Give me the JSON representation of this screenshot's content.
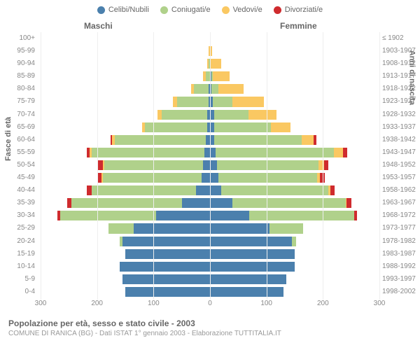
{
  "legend": [
    {
      "label": "Celibi/Nubili",
      "color": "#4b80ad"
    },
    {
      "label": "Coniugati/e",
      "color": "#b0d18b"
    },
    {
      "label": "Vedovi/e",
      "color": "#fac862"
    },
    {
      "label": "Divorziati/e",
      "color": "#cf2b2e"
    }
  ],
  "headers": {
    "male": "Maschi",
    "female": "Femmine"
  },
  "axis": {
    "left_title": "Fasce di età",
    "right_title": "Anni di nascita"
  },
  "xlim": 300,
  "xticks": [
    300,
    200,
    100,
    0,
    100,
    200,
    300
  ],
  "footer": {
    "title": "Popolazione per età, sesso e stato civile - 2003",
    "sub": "COMUNE DI RANICA (BG) - Dati ISTAT 1° gennaio 2003 - Elaborazione TUTTITALIA.IT"
  },
  "colors": {
    "celibi": "#4b80ad",
    "coniugati": "#b0d18b",
    "vedovi": "#fac862",
    "divorziati": "#cf2b2e"
  },
  "rows": [
    {
      "age": "100+",
      "birth": "≤ 1902",
      "m": [
        0,
        0,
        0,
        0
      ],
      "f": [
        0,
        0,
        0,
        0
      ]
    },
    {
      "age": "95-99",
      "birth": "1903-1907",
      "m": [
        0,
        0,
        3,
        0
      ],
      "f": [
        0,
        0,
        4,
        0
      ]
    },
    {
      "age": "90-94",
      "birth": "1908-1912",
      "m": [
        0,
        2,
        3,
        0
      ],
      "f": [
        0,
        0,
        20,
        0
      ]
    },
    {
      "age": "85-89",
      "birth": "1913-1917",
      "m": [
        0,
        8,
        5,
        0
      ],
      "f": [
        2,
        3,
        30,
        0
      ]
    },
    {
      "age": "80-84",
      "birth": "1918-1922",
      "m": [
        3,
        25,
        5,
        0
      ],
      "f": [
        3,
        12,
        45,
        0
      ]
    },
    {
      "age": "75-79",
      "birth": "1923-1927",
      "m": [
        3,
        55,
        8,
        0
      ],
      "f": [
        5,
        35,
        55,
        0
      ]
    },
    {
      "age": "70-74",
      "birth": "1928-1932",
      "m": [
        5,
        80,
        8,
        0
      ],
      "f": [
        8,
        60,
        50,
        0
      ]
    },
    {
      "age": "65-69",
      "birth": "1933-1937",
      "m": [
        5,
        110,
        5,
        0
      ],
      "f": [
        8,
        100,
        35,
        0
      ]
    },
    {
      "age": "60-64",
      "birth": "1938-1942",
      "m": [
        8,
        160,
        5,
        3
      ],
      "f": [
        8,
        155,
        20,
        5
      ]
    },
    {
      "age": "55-59",
      "birth": "1943-1947",
      "m": [
        10,
        200,
        3,
        5
      ],
      "f": [
        10,
        210,
        15,
        8
      ]
    },
    {
      "age": "50-54",
      "birth": "1948-1952",
      "m": [
        12,
        175,
        3,
        8
      ],
      "f": [
        12,
        180,
        10,
        8
      ]
    },
    {
      "age": "45-49",
      "birth": "1953-1957",
      "m": [
        15,
        175,
        2,
        8
      ],
      "f": [
        15,
        175,
        5,
        8
      ]
    },
    {
      "age": "40-44",
      "birth": "1958-1962",
      "m": [
        25,
        185,
        0,
        8
      ],
      "f": [
        20,
        190,
        3,
        8
      ]
    },
    {
      "age": "35-39",
      "birth": "1963-1967",
      "m": [
        50,
        195,
        0,
        8
      ],
      "f": [
        40,
        200,
        2,
        8
      ]
    },
    {
      "age": "30-34",
      "birth": "1968-1972",
      "m": [
        95,
        170,
        0,
        5
      ],
      "f": [
        70,
        185,
        0,
        5
      ]
    },
    {
      "age": "25-29",
      "birth": "1973-1977",
      "m": [
        135,
        45,
        0,
        0
      ],
      "f": [
        105,
        60,
        0,
        0
      ]
    },
    {
      "age": "20-24",
      "birth": "1978-1982",
      "m": [
        155,
        5,
        0,
        0
      ],
      "f": [
        145,
        8,
        0,
        0
      ]
    },
    {
      "age": "15-19",
      "birth": "1983-1987",
      "m": [
        150,
        0,
        0,
        0
      ],
      "f": [
        150,
        0,
        0,
        0
      ]
    },
    {
      "age": "10-14",
      "birth": "1988-1992",
      "m": [
        160,
        0,
        0,
        0
      ],
      "f": [
        150,
        0,
        0,
        0
      ]
    },
    {
      "age": "5-9",
      "birth": "1993-1997",
      "m": [
        155,
        0,
        0,
        0
      ],
      "f": [
        135,
        0,
        0,
        0
      ]
    },
    {
      "age": "0-4",
      "birth": "1998-2002",
      "m": [
        150,
        0,
        0,
        0
      ],
      "f": [
        130,
        0,
        0,
        0
      ]
    }
  ]
}
